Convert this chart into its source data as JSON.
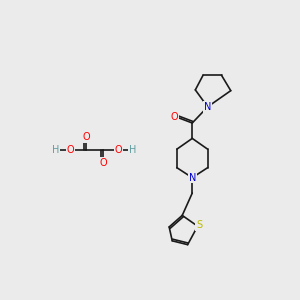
{
  "bg_color": "#ebebeb",
  "bond_color": "#1a1a1a",
  "bond_width": 1.2,
  "atom_colors": {
    "N": "#0000cc",
    "O": "#ff0000",
    "S": "#bbbb00",
    "H": "#5f9ea0",
    "C": "#1a1a1a"
  },
  "font_size": 6.5,
  "fig_width": 3.0,
  "fig_height": 3.0,
  "dpi": 100
}
